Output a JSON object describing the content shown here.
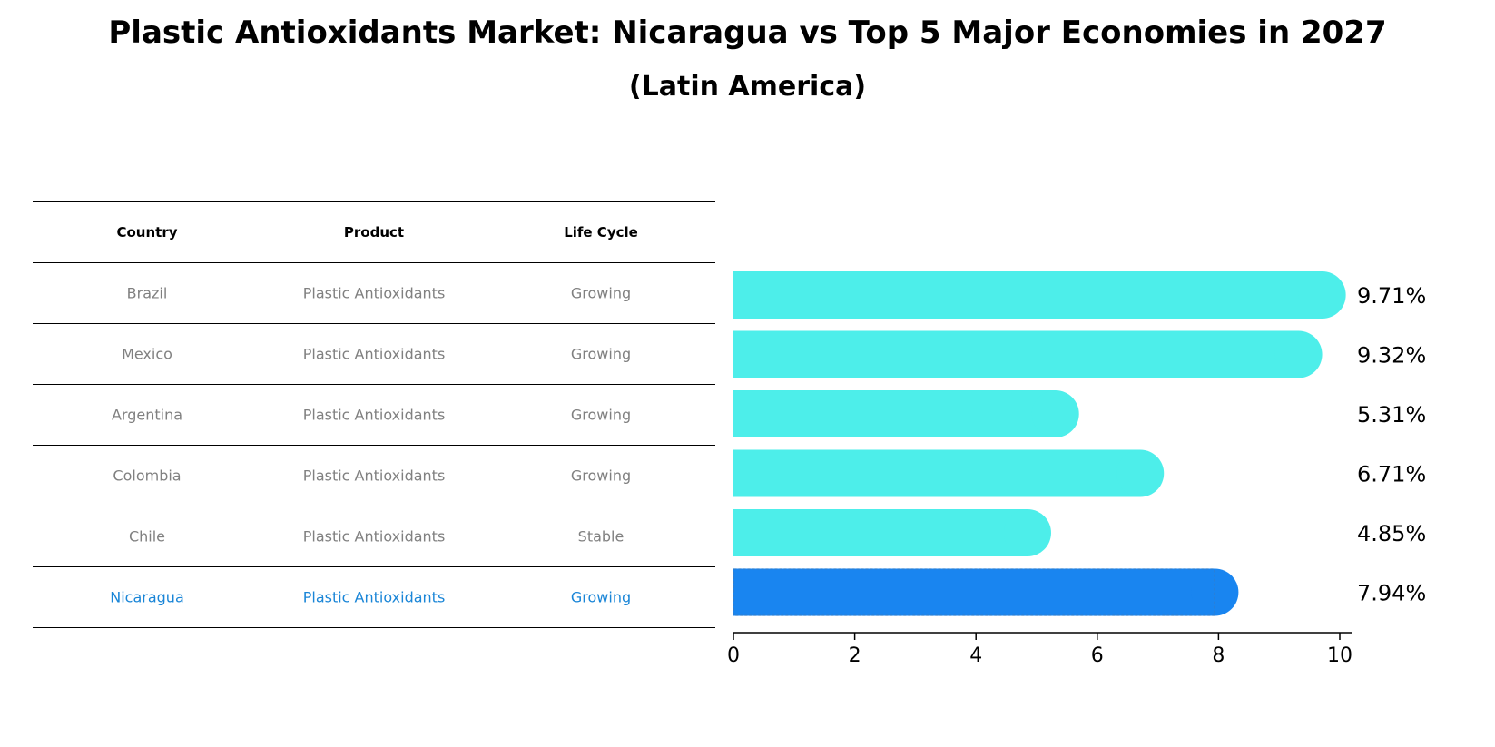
{
  "title": "Plastic Antioxidants Market: Nicaragua vs Top 5 Major Economies in 2027",
  "subtitle": "(Latin America)",
  "table": {
    "headers": [
      "Country",
      "Product",
      "Life Cycle"
    ],
    "rows": [
      {
        "country": "Brazil",
        "product": "Plastic Antioxidants",
        "life_cycle": "Growing",
        "highlight": false
      },
      {
        "country": "Mexico",
        "product": "Plastic Antioxidants",
        "life_cycle": "Growing",
        "highlight": false
      },
      {
        "country": "Argentina",
        "product": "Plastic Antioxidants",
        "life_cycle": "Growing",
        "highlight": false
      },
      {
        "country": "Colombia",
        "product": "Plastic Antioxidants",
        "life_cycle": "Growing",
        "highlight": false
      },
      {
        "country": "Chile",
        "product": "Plastic Antioxidants",
        "life_cycle": "Stable",
        "highlight": false
      },
      {
        "country": "Nicaragua",
        "product": "Plastic Antioxidants",
        "life_cycle": "Growing",
        "highlight": true
      }
    ]
  },
  "colors": {
    "bar": "#4deeea",
    "highlight_bar": "#1985f0",
    "highlight_text": "#1985d7",
    "muted_text": "#808080"
  },
  "chart_data": {
    "type": "bar",
    "orientation": "horizontal",
    "title": "Plastic Antioxidants Market: Nicaragua vs Top 5 Major Economies in 2027",
    "subtitle": "(Latin America)",
    "categories": [
      "Brazil",
      "Mexico",
      "Argentina",
      "Colombia",
      "Chile",
      "Nicaragua"
    ],
    "values": [
      9.71,
      9.32,
      5.31,
      6.71,
      4.85,
      7.94
    ],
    "value_labels": [
      "9.71%",
      "9.32%",
      "5.31%",
      "6.71%",
      "4.85%",
      "7.94%"
    ],
    "highlight": "Nicaragua",
    "xlim": [
      0,
      10.2
    ],
    "xticks": [
      0,
      2,
      4,
      6,
      8,
      10
    ],
    "xlabel": "",
    "ylabel": "",
    "grid": false,
    "legend": "none"
  }
}
